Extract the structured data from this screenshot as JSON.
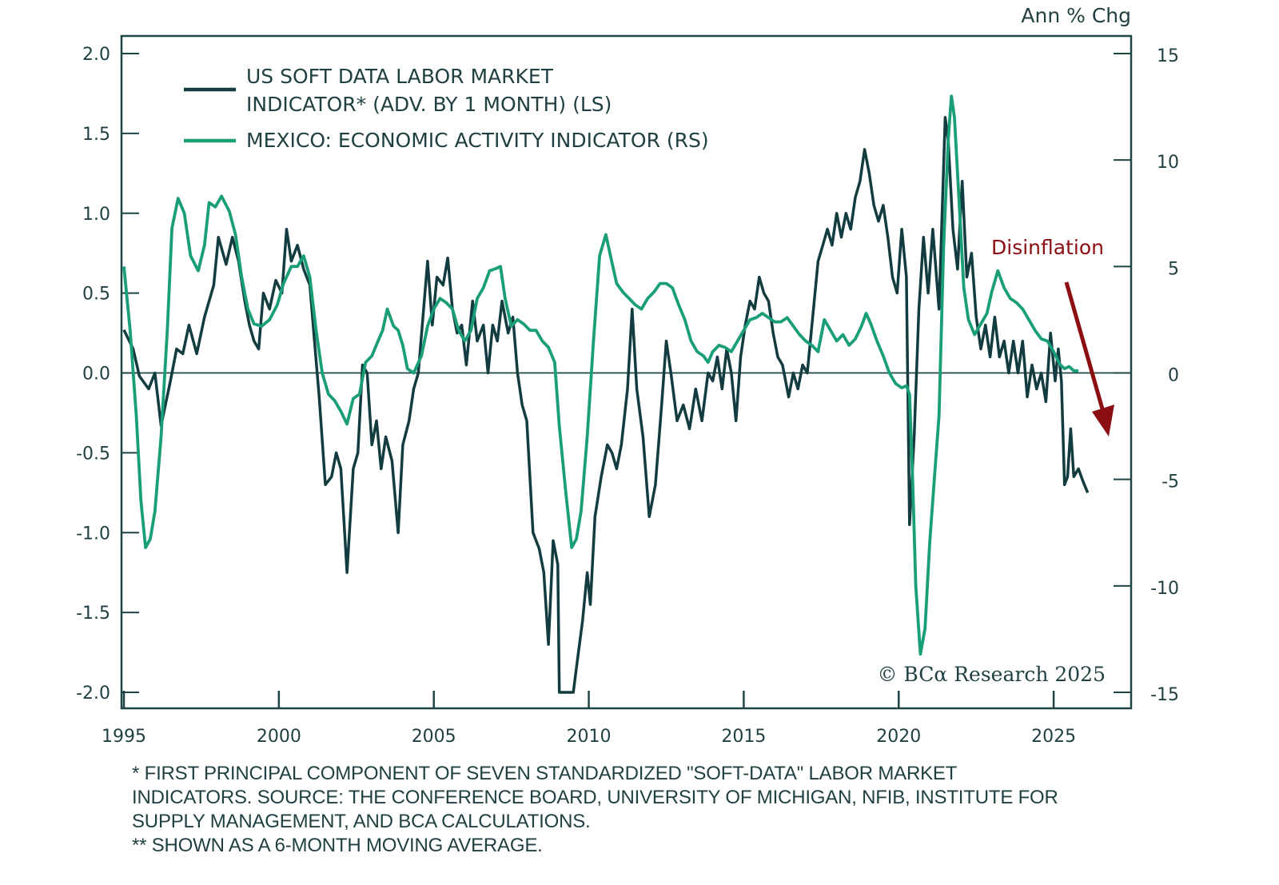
{
  "chart_data": {
    "type": "line",
    "title": "",
    "left_axis": {
      "label": "",
      "ylim": [
        -2.0,
        2.0
      ],
      "ticks": [
        "2.0",
        "1.5",
        "1.0",
        "0.5",
        "0.0",
        "-0.5",
        "-1.0",
        "-1.5",
        "-2.0"
      ],
      "tick_values": [
        2.0,
        1.5,
        1.0,
        0.5,
        0.0,
        -0.5,
        -1.0,
        -1.5,
        -2.0
      ]
    },
    "right_axis": {
      "label": "Ann % Chg",
      "ylim": [
        -15,
        15
      ],
      "ticks": [
        "15",
        "10",
        "5",
        "0",
        "-5",
        "-10",
        "-15"
      ],
      "tick_values": [
        15,
        10,
        5,
        0,
        -5,
        -10,
        -15
      ]
    },
    "x_axis": {
      "xlim": [
        1995,
        2027.5
      ],
      "ticks": [
        "1995",
        "2000",
        "2005",
        "2010",
        "2015",
        "2020",
        "2025"
      ],
      "tick_values": [
        1995,
        2000,
        2005,
        2010,
        2015,
        2020,
        2025
      ]
    },
    "zero_line": true,
    "grid": false,
    "legend_position": "top-left",
    "series": [
      {
        "name": "US SOFT DATA LABOR MARKET INDICATOR* (ADV. BY 1 MONTH) (LS)",
        "legend_lines": [
          "US SOFT DATA LABOR MARKET",
          "INDICATOR* (ADV. BY 1 MONTH) (LS)"
        ],
        "axis": "left",
        "color": "#123c3f",
        "points": [
          [
            1995.0,
            0.27
          ],
          [
            1995.15,
            0.25
          ],
          [
            1995.3,
            0.17
          ],
          [
            1995.4,
            0.18
          ],
          [
            1995.5,
            0.0
          ],
          [
            1995.6,
            -0.02
          ],
          [
            1995.75,
            0.0
          ],
          [
            1995.85,
            -0.1
          ],
          [
            1995.95,
            -0.02
          ],
          [
            1996.05,
            -0.15
          ],
          [
            1996.15,
            -0.2
          ],
          [
            1996.2,
            0.04
          ],
          [
            1996.3,
            -0.2
          ],
          [
            1996.4,
            -0.28
          ],
          [
            1996.5,
            -0.1
          ],
          [
            1996.6,
            -0.34
          ],
          [
            1996.7,
            -0.2
          ],
          [
            1996.8,
            -0.05
          ],
          [
            1996.9,
            0.17
          ],
          [
            1997.0,
            0.13
          ],
          [
            1997.1,
            0.05
          ],
          [
            1997.25,
            0.27
          ],
          [
            1997.35,
            0.3
          ],
          [
            1997.45,
            0.1
          ],
          [
            1997.6,
            0.1
          ],
          [
            1997.7,
            0.3
          ],
          [
            1997.85,
            0.35
          ],
          [
            1997.95,
            0.3
          ],
          [
            1998.05,
            0.5
          ],
          [
            1998.2,
            0.55
          ],
          [
            1998.3,
            0.7
          ],
          [
            1998.4,
            0.85
          ],
          [
            1998.5,
            0.7
          ],
          [
            1998.55,
            0.6
          ],
          [
            1998.65,
            0.85
          ],
          [
            1998.8,
            0.75
          ],
          [
            1998.9,
            0.8
          ],
          [
            1999.0,
            0.63
          ],
          [
            1999.1,
            0.82
          ],
          [
            1999.2,
            0.68
          ],
          [
            1999.3,
            0.8
          ],
          [
            1999.45,
            0.73
          ],
          [
            1999.55,
            0.84
          ],
          [
            1999.7,
            0.7
          ],
          [
            1999.85,
            0.75
          ],
          [
            1999.95,
            0.6
          ],
          [
            2000.05,
            0.35
          ],
          [
            2000.15,
            0.4
          ],
          [
            2000.3,
            0.15
          ],
          [
            2000.45,
            0.1
          ],
          [
            2000.55,
            0.2
          ],
          [
            2000.7,
            0.4
          ],
          [
            2000.8,
            0.3
          ],
          [
            2000.9,
            0.45
          ],
          [
            2001.0,
            0.35
          ],
          [
            2001.1,
            0.6
          ],
          [
            2001.2,
            0.55
          ],
          [
            2001.3,
            0.5
          ],
          [
            2001.4,
            0.35
          ],
          [
            2001.5,
            0.5
          ],
          [
            2001.6,
            0.55
          ],
          [
            2001.7,
            0.9
          ],
          [
            2001.8,
            0.85
          ],
          [
            2001.9,
            0.7
          ],
          [
            2002.0,
            0.75
          ],
          [
            2002.1,
            0.62
          ],
          [
            2002.2,
            0.65
          ],
          [
            2002.3,
            0.55
          ],
          [
            2002.45,
            0.45
          ],
          [
            2002.6,
            0.1
          ],
          [
            2002.7,
            -0.3
          ],
          [
            2002.8,
            -0.55
          ],
          [
            2002.9,
            -0.7
          ],
          [
            2003.0,
            -0.73
          ],
          [
            2003.1,
            -0.55
          ],
          [
            2003.2,
            -0.5
          ],
          [
            2003.35,
            -0.55
          ],
          [
            2003.45,
            -0.9
          ],
          [
            2003.5,
            -1.25
          ]
        ]
      },
      {
        "name": "MEXICO: ECONOMIC ACTIVITY INDICATOR (RS)",
        "legend_lines": [
          "MEXICO: ECONOMIC ACTIVITY INDICATOR (RS)"
        ],
        "axis": "right",
        "color": "#1a9e77",
        "points": []
      }
    ],
    "annotations": [
      {
        "text": "Disinflation",
        "color": "#8b0e12",
        "arrow": "down-right"
      },
      {
        "text": "© BCα Research 2025"
      }
    ],
    "footnotes": [
      "* FIRST PRINCIPAL COMPONENT OF SEVEN STANDARDIZED \"SOFT-DATA\" LABOR MARKET",
      "INDICATORS. SOURCE: THE CONFERENCE BOARD, UNIVERSITY OF MICHIGAN, NFIB, INSTITUTE FOR",
      "SUPPLY MANAGEMENT, AND BCA CALCULATIONS.",
      "** SHOWN AS A 6-MONTH MOVING AVERAGE."
    ]
  }
}
